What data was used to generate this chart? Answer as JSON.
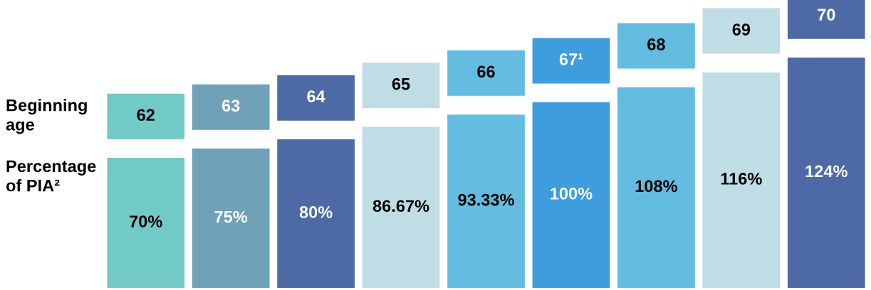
{
  "chart_data": {
    "type": "bar",
    "xlabel": "Beginning\nage",
    "ylabel": "Percentage\nof PIA²",
    "categories": [
      "62",
      "63",
      "64",
      "65",
      "66",
      "67¹",
      "68",
      "69",
      "70"
    ],
    "values": [
      70,
      75,
      80,
      86.67,
      93.33,
      100,
      108,
      116,
      124
    ],
    "colors": [
      "#71cac6",
      "#6fa1b8",
      "#4d6aa6",
      "#bfdde4",
      "#62bde0",
      "#3d9ddd",
      "#62bde0",
      "#bfdde4",
      "#4d6aa6"
    ],
    "value_labels": [
      "70%",
      "75%",
      "80%",
      "86.67%",
      "93.33%",
      "100%",
      "108%",
      "116%",
      "124%"
    ],
    "tick_labels": "x"
  }
}
